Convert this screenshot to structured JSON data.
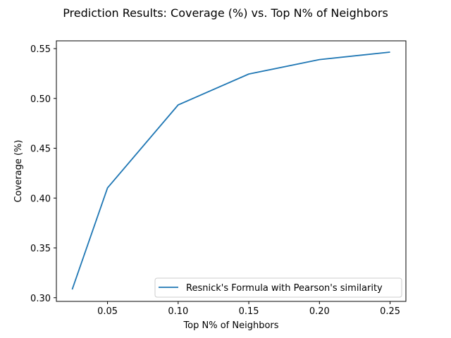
{
  "chart_data": {
    "type": "line",
    "title": "Prediction Results: Coverage (%) vs. Top N% of Neighbors",
    "xlabel": "Top N% of Neighbors",
    "ylabel": "Coverage (%)",
    "xlim": [
      0.0138,
      0.2612
    ],
    "ylim": [
      0.2963,
      0.5578
    ],
    "xticks": [
      0.05,
      0.1,
      0.15,
      0.2,
      0.25
    ],
    "xtick_labels": [
      "0.05",
      "0.10",
      "0.15",
      "0.20",
      "0.25"
    ],
    "yticks": [
      0.3,
      0.35,
      0.4,
      0.45,
      0.5,
      0.55
    ],
    "ytick_labels": [
      "0.30",
      "0.35",
      "0.40",
      "0.45",
      "0.50",
      "0.55"
    ],
    "grid": false,
    "legend_position": "lower-right",
    "series": [
      {
        "name": "Resnick's Formula with Pearson's similarity",
        "color": "#1f77b4",
        "x": [
          0.025,
          0.05,
          0.1,
          0.15,
          0.2,
          0.25
        ],
        "y": [
          0.3083,
          0.4102,
          0.4935,
          0.5245,
          0.539,
          0.5465
        ]
      }
    ]
  }
}
